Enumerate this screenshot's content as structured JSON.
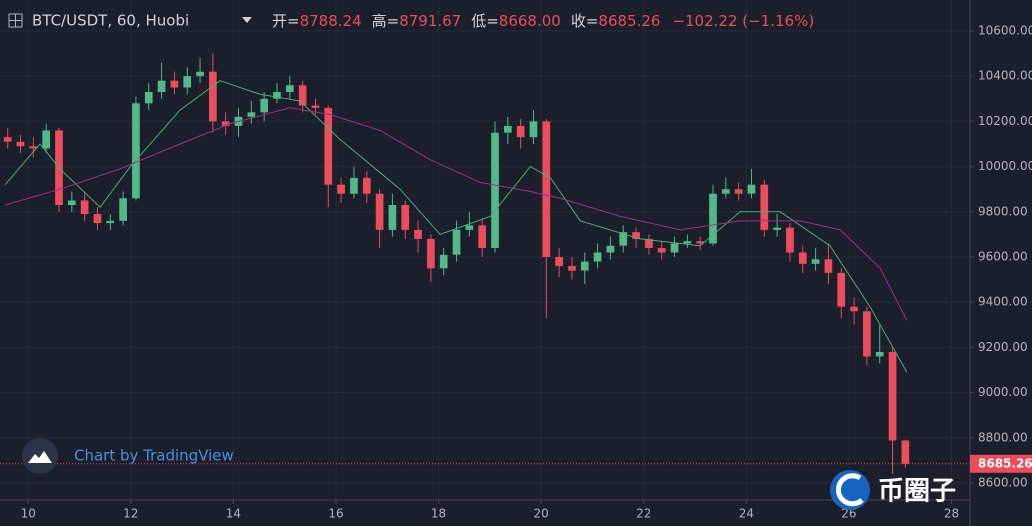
{
  "chart_data": {
    "type": "candlestick",
    "symbol": "BTC/USDT, 60, Huobi",
    "ohlc_legend": [
      {
        "label": "开=",
        "value": "8788.24"
      },
      {
        "label": "高=",
        "value": "8791.67"
      },
      {
        "label": "低=",
        "value": "8668.00"
      },
      {
        "label": "收=",
        "value": "8685.26"
      }
    ],
    "change": "−102.22 (−1.16%)",
    "last_price_label": "8685.26",
    "attribution": "Chart by TradingView",
    "brand": "币圈子",
    "up_color": "#53b987",
    "down_color": "#eb4d5c",
    "grid": true,
    "xlim": [
      9.45,
      28.36
    ],
    "xticks": [
      10,
      12,
      14,
      16,
      18,
      20,
      22,
      24,
      26,
      28
    ],
    "ylim": [
      8525,
      10737
    ],
    "yticks": [
      {
        "value": 8600,
        "label": "8600.00"
      },
      {
        "value": 8800,
        "label": "8800.00"
      },
      {
        "value": 9000,
        "label": "9000.00"
      },
      {
        "value": 9200,
        "label": "9200.00"
      },
      {
        "value": 9400,
        "label": "9400.00"
      },
      {
        "value": 9600,
        "label": "9600.00"
      },
      {
        "value": 9800,
        "label": "9800.00"
      },
      {
        "value": 10000,
        "label": "10000.00"
      },
      {
        "value": 10200,
        "label": "10200.00"
      },
      {
        "value": 10400,
        "label": "10400.00"
      },
      {
        "value": 10600,
        "label": "10600.00"
      }
    ],
    "candles": {
      "x": [
        9.6,
        9.85,
        10.1,
        10.35,
        10.6,
        10.85,
        11.1,
        11.35,
        11.6,
        11.85,
        12.1,
        12.35,
        12.6,
        12.85,
        13.1,
        13.35,
        13.6,
        13.85,
        14.1,
        14.35,
        14.6,
        14.85,
        15.1,
        15.35,
        15.6,
        15.85,
        16.1,
        16.35,
        16.6,
        16.85,
        17.1,
        17.35,
        17.6,
        17.85,
        18.1,
        18.35,
        18.6,
        18.85,
        19.1,
        19.35,
        19.6,
        19.85,
        20.1,
        20.35,
        20.6,
        20.85,
        21.1,
        21.35,
        21.6,
        21.85,
        22.1,
        22.35,
        22.6,
        22.85,
        23.1,
        23.35,
        23.6,
        23.85,
        24.1,
        24.35,
        24.6,
        24.85,
        25.1,
        25.35,
        25.6,
        25.85,
        26.1,
        26.35,
        26.6,
        26.85,
        27.1
      ],
      "open": [
        10130,
        10110,
        10090,
        10080,
        10160,
        9830,
        9850,
        9790,
        9750,
        9760,
        9860,
        10280,
        10330,
        10380,
        10350,
        10400,
        10420,
        10200,
        10180,
        10220,
        10240,
        10300,
        10330,
        10360,
        10270,
        10260,
        9920,
        9880,
        9950,
        9880,
        9720,
        9830,
        9720,
        9680,
        9550,
        9610,
        9720,
        9740,
        9640,
        10150,
        10180,
        10130,
        10200,
        9600,
        9560,
        9540,
        9580,
        9620,
        9650,
        9710,
        9680,
        9640,
        9620,
        9660,
        9670,
        9660,
        9880,
        9900,
        9880,
        9920,
        9720,
        9730,
        9620,
        9570,
        9590,
        9530,
        9380,
        9360,
        9160,
        9180,
        8788.24
      ],
      "high": [
        10170,
        10140,
        10130,
        10190,
        10170,
        9890,
        9880,
        9820,
        9790,
        9890,
        10310,
        10370,
        10460,
        10420,
        10440,
        10480,
        10500,
        10240,
        10260,
        10290,
        10330,
        10370,
        10400,
        10380,
        10300,
        10270,
        9950,
        10000,
        9980,
        9900,
        9880,
        9850,
        9760,
        9700,
        9640,
        9760,
        9800,
        9770,
        10200,
        10220,
        10210,
        10250,
        10210,
        9640,
        9600,
        9620,
        9660,
        9690,
        9740,
        9730,
        9700,
        9670,
        9690,
        9700,
        9690,
        9920,
        9950,
        9930,
        9990,
        9940,
        9790,
        9750,
        9650,
        9640,
        9660,
        9550,
        9420,
        9380,
        9300,
        9200,
        8791.67
      ],
      "low": [
        10080,
        10060,
        10040,
        10060,
        9800,
        9800,
        9760,
        9720,
        9720,
        9740,
        9850,
        10250,
        10300,
        10320,
        10320,
        10370,
        10150,
        10140,
        10130,
        10190,
        10200,
        10280,
        10300,
        10240,
        10230,
        9820,
        9840,
        9860,
        9840,
        9640,
        9690,
        9680,
        9620,
        9490,
        9520,
        9580,
        9690,
        9600,
        9620,
        10100,
        10080,
        10100,
        9330,
        9510,
        9500,
        9480,
        9550,
        9590,
        9620,
        9640,
        9610,
        9590,
        9600,
        9640,
        9630,
        9650,
        9860,
        9850,
        9860,
        9690,
        9690,
        9580,
        9530,
        9540,
        9480,
        9330,
        9300,
        9120,
        9130,
        8640,
        8668
      ],
      "close": [
        10110,
        10090,
        10080,
        10160,
        9830,
        9850,
        9790,
        9750,
        9760,
        9860,
        10280,
        10330,
        10380,
        10350,
        10400,
        10420,
        10200,
        10180,
        10220,
        10240,
        10300,
        10330,
        10360,
        10270,
        10260,
        9920,
        9880,
        9950,
        9880,
        9720,
        9830,
        9720,
        9680,
        9550,
        9610,
        9720,
        9740,
        9640,
        10150,
        10180,
        10130,
        10200,
        9600,
        9560,
        9540,
        9580,
        9620,
        9650,
        9710,
        9680,
        9640,
        9620,
        9660,
        9670,
        9660,
        9880,
        9900,
        9880,
        9920,
        9720,
        9730,
        9620,
        9570,
        9590,
        9530,
        9380,
        9360,
        9160,
        9180,
        8788.24,
        8685.26
      ]
    },
    "ma": [
      {
        "color": "#4caf72",
        "x": [
          9.55,
          10.23,
          10.62,
          11.4,
          11.99,
          12.96,
          13.74,
          14.52,
          15.3,
          16.08,
          17.25,
          18.03,
          19.01,
          19.79,
          20.18,
          20.76,
          21.93,
          23.1,
          23.88,
          24.66,
          25.63,
          26.41,
          27.13
        ],
        "values": [
          9920,
          10100,
          9990,
          9820,
          10000,
          10250,
          10380,
          10320,
          10290,
          10120,
          9900,
          9700,
          9780,
          10000,
          9950,
          9760,
          9680,
          9650,
          9800,
          9800,
          9650,
          9380,
          9090
        ]
      },
      {
        "color": "#a0308c",
        "x": [
          9.55,
          10.62,
          11.79,
          12.96,
          13.94,
          15.11,
          15.89,
          16.86,
          17.84,
          18.81,
          19.79,
          20.37,
          21.54,
          22.71,
          23.88,
          25.05,
          25.83,
          26.61,
          27.13
        ],
        "values": [
          9830,
          9900,
          9990,
          10100,
          10190,
          10260,
          10230,
          10160,
          10030,
          9930,
          9890,
          9860,
          9780,
          9720,
          9760,
          9760,
          9720,
          9550,
          9320
        ]
      }
    ]
  }
}
